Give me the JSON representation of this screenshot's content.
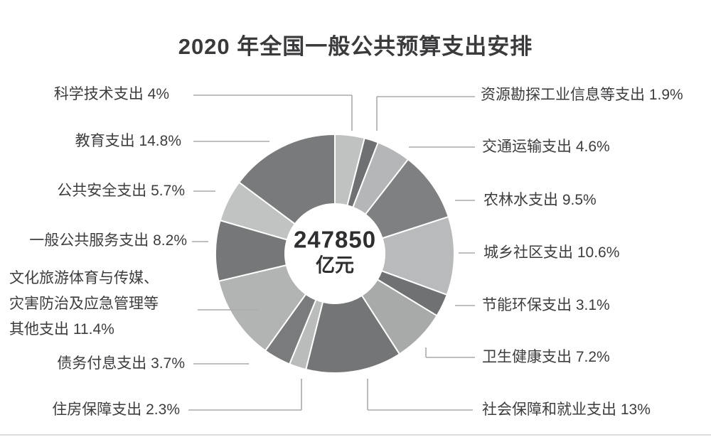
{
  "title": "2020 年全国一般公共预算支出安排",
  "chart_data": {
    "type": "pie",
    "variant": "donut",
    "title": "2020 年全国一般公共预算支出安排",
    "unit": "%",
    "start_angle_deg": 0,
    "direction": "clockwise",
    "grid": false,
    "legend_position": "none",
    "center_label": {
      "value": "247850",
      "unit": "亿元"
    },
    "slices": [
      {
        "id": "science",
        "label": "科学技术支出",
        "value": 4,
        "display": "科学技术支出 4%",
        "side": "left",
        "color": "#c0c2c2"
      },
      {
        "id": "resources",
        "label": "资源勘探工业信息等支出",
        "value": 1.9,
        "display": "资源勘探工业信息等支出 1.9%",
        "side": "right",
        "color": "#6e7071"
      },
      {
        "id": "transport",
        "label": "交通运输支出",
        "value": 4.6,
        "display": "交通运输支出 4.6%",
        "side": "right",
        "color": "#b4b6b7"
      },
      {
        "id": "agriculture",
        "label": "农林水支出",
        "value": 9.5,
        "display": "农林水支出 9.5%",
        "side": "right",
        "color": "#7e8082"
      },
      {
        "id": "urban_rural",
        "label": "城乡社区支出",
        "value": 10.6,
        "display": "城乡社区支出 10.6%",
        "side": "right",
        "color": "#b8babb"
      },
      {
        "id": "energy_env",
        "label": "节能环保支出",
        "value": 3.1,
        "display": "节能环保支出 3.1%",
        "side": "right",
        "color": "#6f7172"
      },
      {
        "id": "health",
        "label": "卫生健康支出",
        "value": 7.2,
        "display": "卫生健康支出 7.2%",
        "side": "right",
        "color": "#a8aaaa"
      },
      {
        "id": "social_security",
        "label": "社会保障和就业支出",
        "value": 13,
        "display": "社会保障和就业支出 13%",
        "side": "right",
        "color": "#737576"
      },
      {
        "id": "housing",
        "label": "住房保障支出",
        "value": 2.3,
        "display": "住房保障支出 2.3%",
        "side": "left",
        "color": "#babcbc"
      },
      {
        "id": "debt_interest",
        "label": "债务付息支出",
        "value": 3.7,
        "display": "债务付息支出 3.7%",
        "side": "left",
        "color": "#7a7b7c"
      },
      {
        "id": "culture_other",
        "label": "文化旅游体育与传媒、灾害防治及应急管理等其他支出",
        "value": 11.4,
        "display_lines": [
          "文化旅游体育与传媒、",
          "灾害防治及应急管理等",
          "其他支出 11.4%"
        ],
        "side": "left",
        "color": "#b2b4b4"
      },
      {
        "id": "general_public",
        "label": "一般公共服务支出",
        "value": 8.2,
        "display": "一般公共服务支出 8.2%",
        "side": "left",
        "color": "#757778"
      },
      {
        "id": "public_security",
        "label": "公共安全支出",
        "value": 5.7,
        "display": "公共安全支出 5.7%",
        "side": "left",
        "color": "#c1c3c3"
      },
      {
        "id": "education",
        "label": "教育支出",
        "value": 14.8,
        "display": "教育支出 14.8%",
        "side": "left",
        "color": "#797a7c"
      }
    ]
  }
}
